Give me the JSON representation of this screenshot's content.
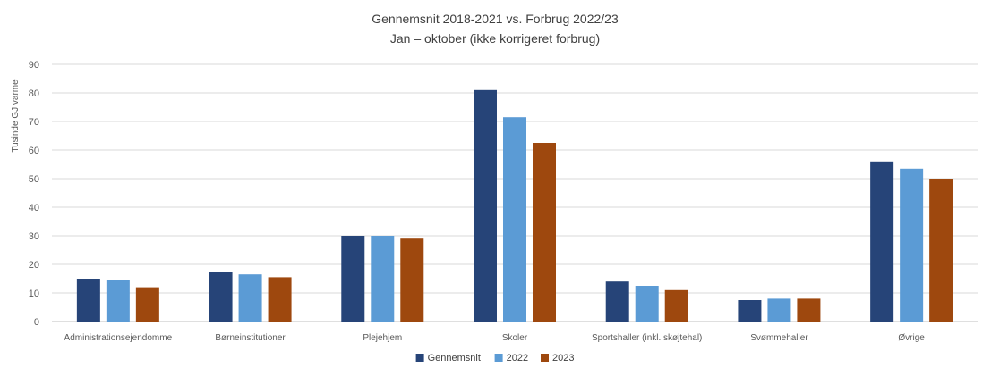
{
  "chart_data": {
    "type": "bar",
    "title": "Gennemsnit 2018-2021 vs. Forbrug 2022/23",
    "subtitle": "Jan – oktober (ikke korrigeret forbrug)",
    "ylabel": "Tusinde GJ varme",
    "xlabel": "",
    "ylim": [
      0,
      90
    ],
    "yticks": [
      0,
      10,
      20,
      30,
      40,
      50,
      60,
      70,
      80,
      90
    ],
    "grid": true,
    "legend_position": "bottom",
    "categories": [
      "Administrationsejendomme",
      "Børneinstitutioner",
      "Plejehjem",
      "Skoler",
      "Sportshaller (inkl. skøjtehal)",
      "Svømmehaller",
      "Øvrige"
    ],
    "series": [
      {
        "name": "Gennemsnit",
        "color": "#264478",
        "values": [
          15,
          17.5,
          30,
          81,
          14,
          7.5,
          56
        ]
      },
      {
        "name": "2022",
        "color": "#5b9bd5",
        "values": [
          14.5,
          16.5,
          30,
          71.5,
          12.5,
          8,
          53.5
        ]
      },
      {
        "name": "2023",
        "color": "#9e480e",
        "values": [
          12,
          15.5,
          29,
          62.5,
          11,
          8,
          50
        ]
      }
    ]
  }
}
